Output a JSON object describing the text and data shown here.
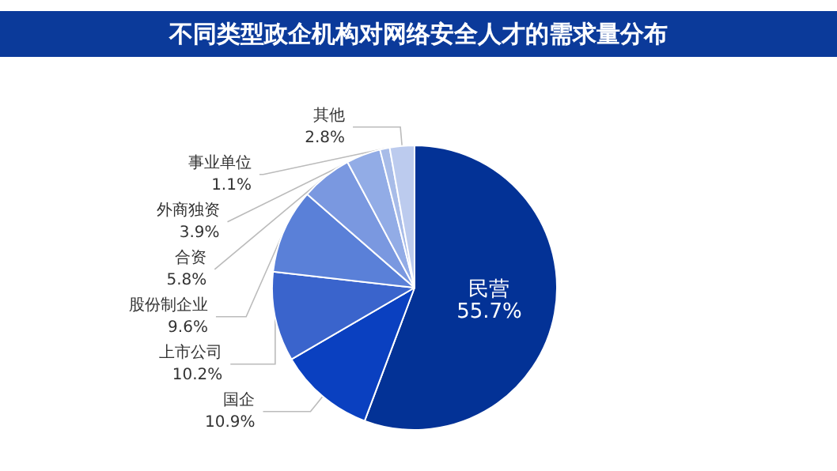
{
  "chart_data": {
    "type": "pie",
    "title": "不同类型政企机构对网络安全人才的需求量分布",
    "categories": [
      "民营",
      "国企",
      "上市公司",
      "股份制企业",
      "合资",
      "外商独资",
      "事业单位",
      "其他"
    ],
    "values": [
      55.7,
      10.9,
      10.2,
      9.6,
      5.8,
      3.9,
      1.1,
      2.8
    ],
    "value_labels": [
      "55.7%",
      "10.9%",
      "10.2%",
      "9.6%",
      "5.8%",
      "3.9%",
      "1.1%",
      "2.8%"
    ],
    "colors": [
      "#033296",
      "#0a40c0",
      "#3a64cc",
      "#5a80d8",
      "#7a98e0",
      "#92ace6",
      "#a8bce8",
      "#bccbee"
    ],
    "legend": false
  }
}
